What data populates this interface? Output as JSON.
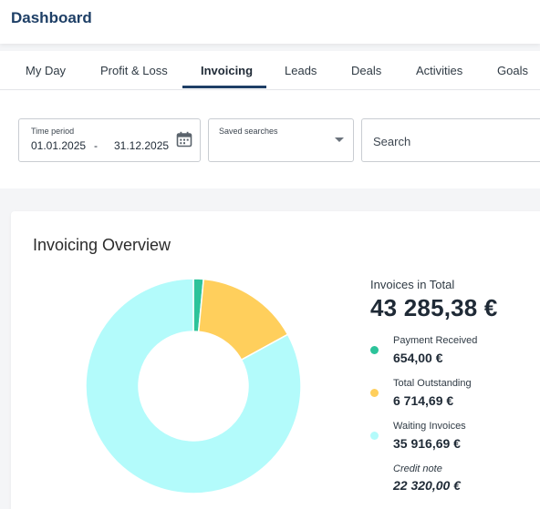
{
  "header": {
    "title": "Dashboard"
  },
  "tabs": [
    {
      "label": "My Day"
    },
    {
      "label": "Profit & Loss"
    },
    {
      "label": "Invoicing",
      "active": true
    },
    {
      "label": "Leads"
    },
    {
      "label": "Deals"
    },
    {
      "label": "Activities"
    },
    {
      "label": "Goals"
    }
  ],
  "filters": {
    "time_period": {
      "label": "Time period",
      "from": "01.01.2025",
      "separator": "-",
      "to": "31.12.2025",
      "icon": "calendar-icon"
    },
    "saved_searches": {
      "label": "Saved searches",
      "icon": "caret-down-icon"
    },
    "search": {
      "placeholder": "Search",
      "value": ""
    }
  },
  "overview": {
    "title": "Invoicing Overview",
    "total_label": "Invoices in Total",
    "total_value": "43 285,38 €",
    "items": [
      {
        "name": "Payment Received",
        "amount": "654,00 €",
        "color": "#2cc39a"
      },
      {
        "name": "Total Outstanding",
        "amount": "6 714,69 €",
        "color": "#ffcf5c"
      },
      {
        "name": "Waiting Invoices",
        "amount": "35 916,69 €",
        "color": "#b3fbfb"
      },
      {
        "name": "Credit note",
        "amount": "22 320,00 €"
      }
    ]
  },
  "chart_data": {
    "type": "pie",
    "categories": [
      "Payment Received",
      "Total Outstanding",
      "Waiting Invoices"
    ],
    "values": [
      654.0,
      6714.69,
      35916.69
    ],
    "colors": [
      "#2cc39a",
      "#ffcf5c",
      "#b3fbfb"
    ]
  }
}
